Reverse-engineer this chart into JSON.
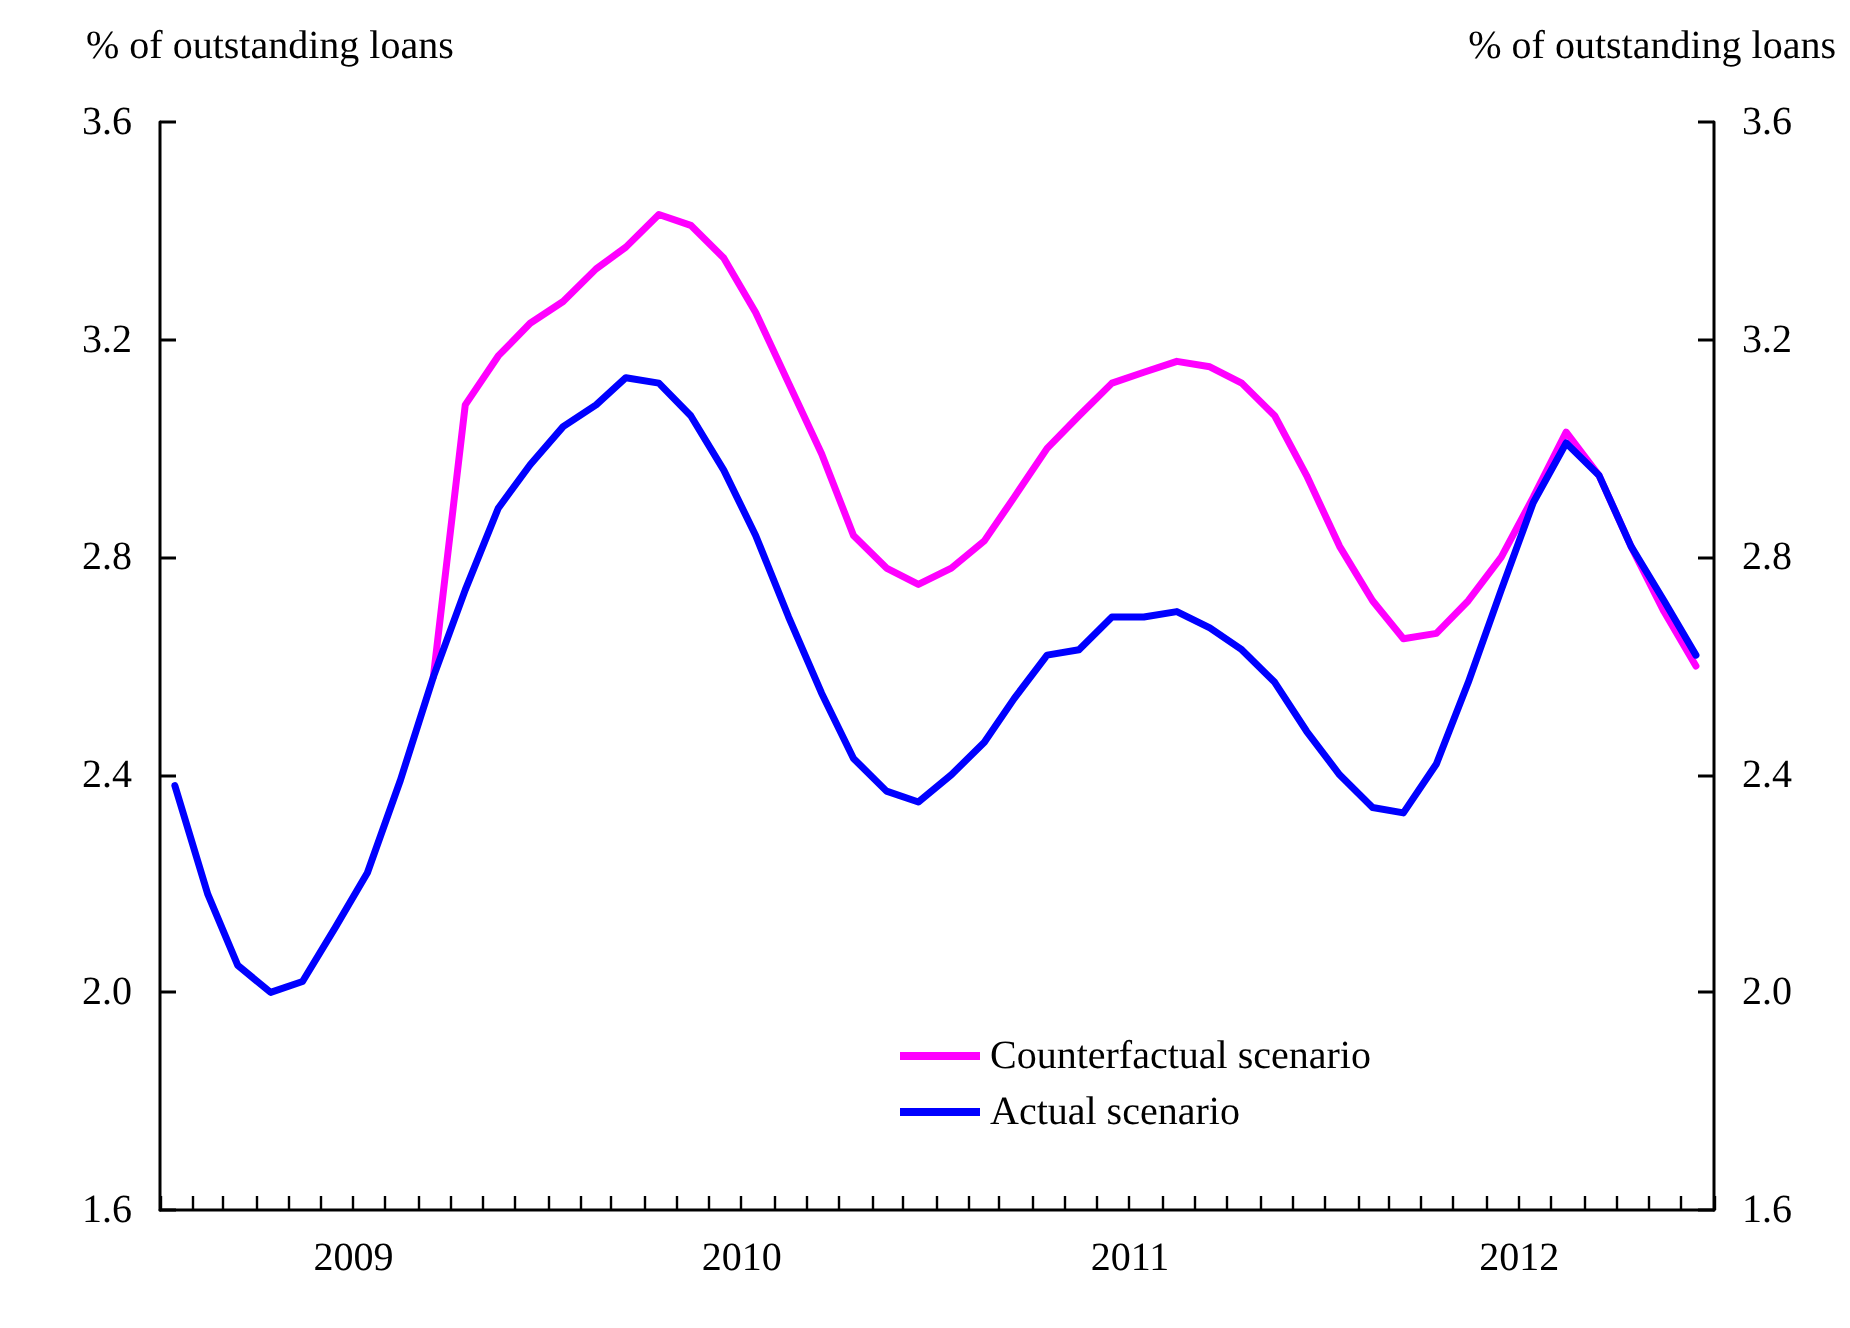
{
  "chart_data": {
    "type": "line",
    "ylabel": "% of outstanding loans",
    "y2label": "% of outstanding loans",
    "x": [
      "2009-01-15",
      "2009-02-15",
      "2009-03-15",
      "2009-04-15",
      "2009-05-15",
      "2009-06-15",
      "2009-07-15",
      "2009-08-15",
      "2009-09-15",
      "2009-10-15",
      "2009-11-15",
      "2009-12-15",
      "2010-01-15",
      "2010-02-15",
      "2010-03-15",
      "2010-04-15",
      "2010-05-15",
      "2010-06-15",
      "2010-07-15",
      "2010-08-15",
      "2010-09-15",
      "2010-10-15",
      "2010-11-15",
      "2010-12-15",
      "2011-01-15",
      "2011-02-15",
      "2011-03-15",
      "2011-04-15",
      "2011-05-15",
      "2011-06-15",
      "2011-07-15",
      "2011-08-15",
      "2011-09-15",
      "2011-10-15",
      "2011-11-15",
      "2011-12-15",
      "2012-01-15",
      "2012-02-15",
      "2012-03-15",
      "2012-04-15",
      "2012-05-15",
      "2012-06-15",
      "2012-07-15",
      "2012-08-15",
      "2012-09-15",
      "2012-10-15",
      "2012-11-15",
      "2012-12-15"
    ],
    "series": [
      {
        "name": "Counterfactual scenario",
        "color": "#ff00ff",
        "values": [
          null,
          null,
          null,
          null,
          null,
          null,
          null,
          null,
          2.58,
          3.08,
          3.17,
          3.23,
          3.27,
          3.33,
          3.37,
          3.43,
          3.41,
          3.35,
          3.25,
          3.12,
          2.99,
          2.84,
          2.78,
          2.75,
          2.78,
          2.83,
          2.91,
          3.0,
          3.06,
          3.12,
          3.14,
          3.16,
          3.15,
          3.12,
          3.06,
          2.95,
          2.82,
          2.72,
          2.65,
          2.66,
          2.72,
          2.8,
          2.91,
          3.03,
          2.95,
          2.82,
          2.7,
          2.6
        ]
      },
      {
        "name": "Actual scenario",
        "color": "#0000ff",
        "values": [
          2.38,
          2.18,
          2.05,
          2.0,
          2.02,
          2.12,
          2.22,
          2.39,
          2.58,
          2.74,
          2.89,
          2.97,
          3.04,
          3.08,
          3.13,
          3.12,
          3.06,
          2.96,
          2.84,
          2.69,
          2.55,
          2.43,
          2.37,
          2.35,
          2.4,
          2.46,
          2.54,
          2.62,
          2.63,
          2.69,
          2.69,
          2.7,
          2.67,
          2.63,
          2.57,
          2.48,
          2.4,
          2.34,
          2.33,
          2.42,
          2.57,
          2.74,
          2.9,
          3.01,
          2.95,
          2.82,
          2.72,
          2.62
        ]
      }
    ],
    "xlim": [
      "2009-01-01",
      "2013-01-01"
    ],
    "xticks": [
      {
        "value": "2009-01-01",
        "label": null
      },
      {
        "value": "2009-02-01",
        "label": null
      },
      {
        "value": "2009-03-01",
        "label": null
      },
      {
        "value": "2009-04-01",
        "label": null
      },
      {
        "value": "2009-05-01",
        "label": null
      },
      {
        "value": "2009-06-01",
        "label": null
      },
      {
        "value": "2009-07-01",
        "label": null
      },
      {
        "value": "2009-08-01",
        "label": null
      },
      {
        "value": "2009-09-01",
        "label": null
      },
      {
        "value": "2009-10-01",
        "label": null
      },
      {
        "value": "2009-11-01",
        "label": null
      },
      {
        "value": "2009-12-01",
        "label": null
      },
      {
        "value": "2010-01-01",
        "label": null
      },
      {
        "value": "2010-02-01",
        "label": null
      },
      {
        "value": "2010-03-01",
        "label": null
      },
      {
        "value": "2010-04-01",
        "label": null
      },
      {
        "value": "2010-05-01",
        "label": null
      },
      {
        "value": "2010-06-01",
        "label": null
      },
      {
        "value": "2010-07-01",
        "label": null
      },
      {
        "value": "2010-08-01",
        "label": null
      },
      {
        "value": "2010-09-01",
        "label": null
      },
      {
        "value": "2010-10-01",
        "label": null
      },
      {
        "value": "2010-11-01",
        "label": null
      },
      {
        "value": "2010-12-01",
        "label": null
      },
      {
        "value": "2011-01-01",
        "label": null
      },
      {
        "value": "2011-02-01",
        "label": null
      },
      {
        "value": "2011-03-01",
        "label": null
      },
      {
        "value": "2011-04-01",
        "label": null
      },
      {
        "value": "2011-05-01",
        "label": null
      },
      {
        "value": "2011-06-01",
        "label": null
      },
      {
        "value": "2011-07-01",
        "label": null
      },
      {
        "value": "2011-08-01",
        "label": null
      },
      {
        "value": "2011-09-01",
        "label": null
      },
      {
        "value": "2011-10-01",
        "label": null
      },
      {
        "value": "2011-11-01",
        "label": null
      },
      {
        "value": "2011-12-01",
        "label": null
      },
      {
        "value": "2012-01-01",
        "label": null
      },
      {
        "value": "2012-02-01",
        "label": null
      },
      {
        "value": "2012-03-01",
        "label": null
      },
      {
        "value": "2012-04-01",
        "label": null
      },
      {
        "value": "2012-05-01",
        "label": null
      },
      {
        "value": "2012-06-01",
        "label": null
      },
      {
        "value": "2012-07-01",
        "label": null
      },
      {
        "value": "2012-08-01",
        "label": null
      },
      {
        "value": "2012-09-01",
        "label": null
      },
      {
        "value": "2012-10-01",
        "label": null
      },
      {
        "value": "2012-11-01",
        "label": null
      },
      {
        "value": "2012-12-01",
        "label": null
      },
      {
        "value": "2013-01-01",
        "label": null
      },
      {
        "value": "2009-07-02",
        "label": "2009"
      },
      {
        "value": "2010-07-02",
        "label": "2010"
      },
      {
        "value": "2011-07-02",
        "label": "2011"
      },
      {
        "value": "2012-07-02",
        "label": "2012"
      }
    ],
    "ylim": [
      1.6,
      3.6
    ],
    "yticks": [
      {
        "value": 1.6,
        "label": "1.6"
      },
      {
        "value": 2,
        "label": "2.0"
      },
      {
        "value": 2.4,
        "label": "2.4"
      },
      {
        "value": 2.8,
        "label": "2.8"
      },
      {
        "value": 3.2,
        "label": "3.2"
      },
      {
        "value": 3.6,
        "label": "3.6"
      }
    ],
    "y2lim": [
      1.6,
      3.6
    ],
    "y2ticks": [
      {
        "value": 1.6,
        "label": "1.6"
      },
      {
        "value": 2,
        "label": "2.0"
      },
      {
        "value": 2.4,
        "label": "2.4"
      },
      {
        "value": 2.8,
        "label": "2.8"
      },
      {
        "value": 3.2,
        "label": "3.2"
      },
      {
        "value": 3.6,
        "label": "3.6"
      }
    ],
    "legend": "bottom",
    "grid": false,
    "marker": "none",
    "line_style": "solid"
  }
}
